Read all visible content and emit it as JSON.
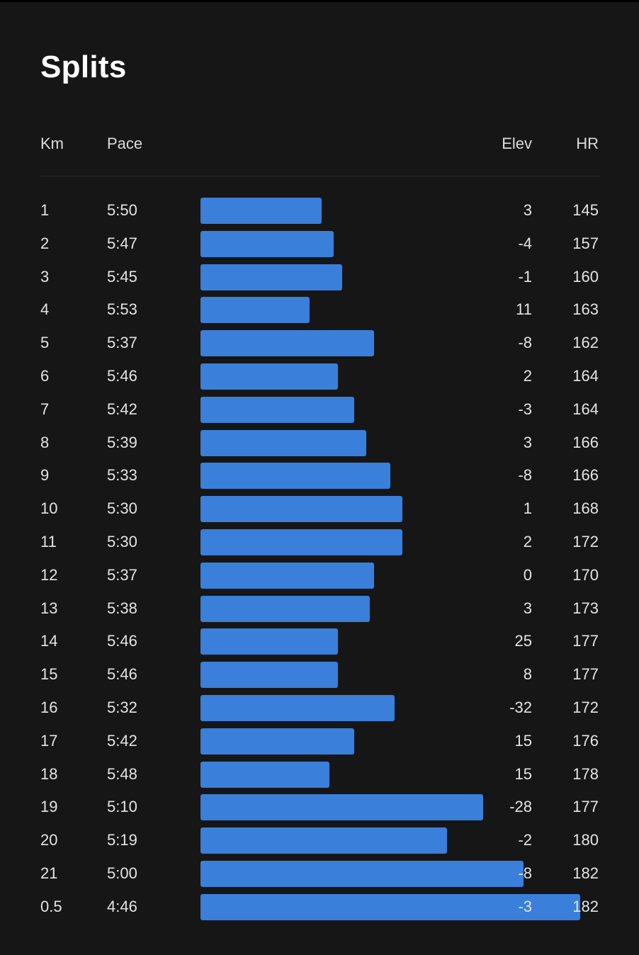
{
  "title": "Splits",
  "headers": {
    "km": "Km",
    "pace": "Pace",
    "elev": "Elev",
    "hr": "HR"
  },
  "colors": {
    "background": "#161616",
    "bar": "#3a7fd9",
    "text": "#e4e4e4"
  },
  "splits": [
    {
      "km": "1",
      "pace": "5:50",
      "elev": "3",
      "hr": "145"
    },
    {
      "km": "2",
      "pace": "5:47",
      "elev": "-4",
      "hr": "157"
    },
    {
      "km": "3",
      "pace": "5:45",
      "elev": "-1",
      "hr": "160"
    },
    {
      "km": "4",
      "pace": "5:53",
      "elev": "11",
      "hr": "163"
    },
    {
      "km": "5",
      "pace": "5:37",
      "elev": "-8",
      "hr": "162"
    },
    {
      "km": "6",
      "pace": "5:46",
      "elev": "2",
      "hr": "164"
    },
    {
      "km": "7",
      "pace": "5:42",
      "elev": "-3",
      "hr": "164"
    },
    {
      "km": "8",
      "pace": "5:39",
      "elev": "3",
      "hr": "166"
    },
    {
      "km": "9",
      "pace": "5:33",
      "elev": "-8",
      "hr": "166"
    },
    {
      "km": "10",
      "pace": "5:30",
      "elev": "1",
      "hr": "168"
    },
    {
      "km": "11",
      "pace": "5:30",
      "elev": "2",
      "hr": "172"
    },
    {
      "km": "12",
      "pace": "5:37",
      "elev": "0",
      "hr": "170"
    },
    {
      "km": "13",
      "pace": "5:38",
      "elev": "3",
      "hr": "173"
    },
    {
      "km": "14",
      "pace": "5:46",
      "elev": "25",
      "hr": "177"
    },
    {
      "km": "15",
      "pace": "5:46",
      "elev": "8",
      "hr": "177"
    },
    {
      "km": "16",
      "pace": "5:32",
      "elev": "-32",
      "hr": "172"
    },
    {
      "km": "17",
      "pace": "5:42",
      "elev": "15",
      "hr": "176"
    },
    {
      "km": "18",
      "pace": "5:48",
      "elev": "15",
      "hr": "178"
    },
    {
      "km": "19",
      "pace": "5:10",
      "elev": "-28",
      "hr": "177"
    },
    {
      "km": "20",
      "pace": "5:19",
      "elev": "-2",
      "hr": "180"
    },
    {
      "km": "21",
      "pace": "5:00",
      "elev": "-8",
      "hr": "182"
    },
    {
      "km": "0.5",
      "pace": "4:46",
      "elev": "-3",
      "hr": "182"
    }
  ]
}
